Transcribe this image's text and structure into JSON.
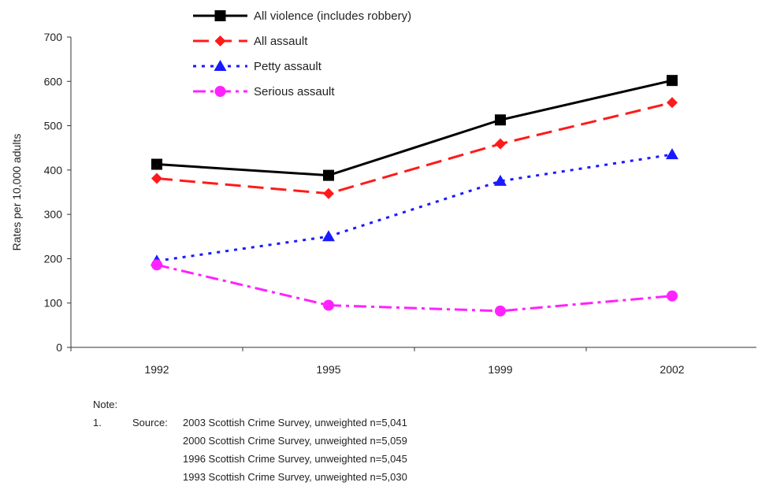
{
  "chart_data": {
    "type": "line",
    "categories": [
      "1992",
      "1995",
      "1999",
      "2002"
    ],
    "series": [
      {
        "name": "All violence (includes robbery)",
        "values": [
          413,
          388,
          513,
          602
        ],
        "color": "#000000",
        "marker": "square",
        "dash": "solid"
      },
      {
        "name": "All assault",
        "values": [
          381,
          347,
          459,
          552
        ],
        "color": "#ff1a1a",
        "marker": "diamond",
        "dash": "long-dash"
      },
      {
        "name": "Petty assault",
        "values": [
          195,
          250,
          375,
          435
        ],
        "color": "#1a1aff",
        "marker": "triangle",
        "dash": "dotted"
      },
      {
        "name": "Serious assault",
        "values": [
          186,
          95,
          82,
          116
        ],
        "color": "#ff22ff",
        "marker": "circle",
        "dash": "dash-dot"
      }
    ],
    "ylabel": "Rates per 10,000 adults",
    "xlabel": "",
    "ylim": [
      0,
      700
    ],
    "yticks": [
      "0",
      "100",
      "200",
      "300",
      "400",
      "500",
      "600",
      "700"
    ],
    "grid": false,
    "legend_position": "top"
  },
  "notes": {
    "heading": "Note:",
    "index": "1.",
    "source_label": "Source:",
    "sources": [
      "2003 Scottish Crime Survey, unweighted n=5,041",
      "2000 Scottish Crime Survey, unweighted n=5,059",
      "1996 Scottish Crime Survey, unweighted n=5,045",
      "1993 Scottish Crime Survey, unweighted n=5,030"
    ]
  }
}
